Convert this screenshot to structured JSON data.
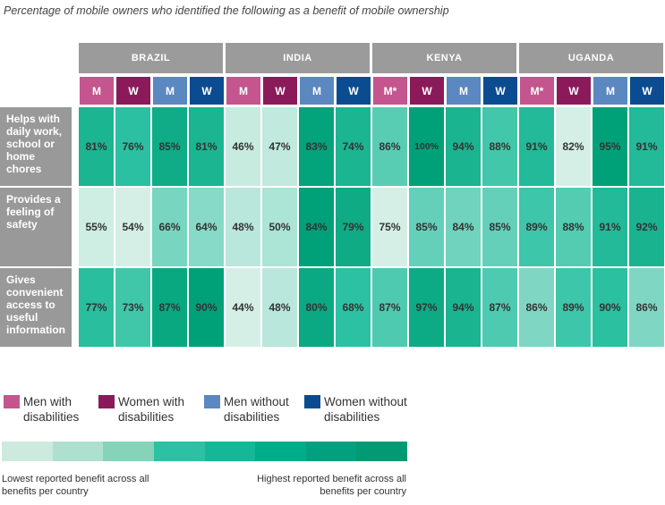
{
  "chart_data": {
    "type": "heatmap",
    "subtitle": "Percentage of mobile owners who identified the following as a benefit of mobile ownership",
    "countries": [
      {
        "name": "BRAZIL",
        "groups": [
          "M",
          "W",
          "M",
          "W"
        ]
      },
      {
        "name": "INDIA",
        "groups": [
          "M",
          "W",
          "M",
          "W"
        ]
      },
      {
        "name": "KENYA",
        "groups": [
          "M*",
          "W",
          "M",
          "W"
        ]
      },
      {
        "name": "UGANDA",
        "groups": [
          "M*",
          "W",
          "M",
          "W"
        ]
      }
    ],
    "group_colors": [
      "#c4558e",
      "#8b1a5b",
      "#5b88c0",
      "#0b4c91"
    ],
    "rows": [
      {
        "label": "Helps with daily work, school or home chores",
        "values": [
          81,
          76,
          85,
          81,
          46,
          47,
          83,
          74,
          86,
          100,
          94,
          88,
          91,
          82,
          95,
          91
        ]
      },
      {
        "label": "Provides a feeling of safety",
        "values": [
          55,
          54,
          66,
          64,
          48,
          50,
          84,
          79,
          75,
          85,
          84,
          85,
          89,
          88,
          91,
          92
        ]
      },
      {
        "label": "Gives convenient access to useful information",
        "values": [
          77,
          73,
          87,
          90,
          44,
          48,
          80,
          68,
          87,
          97,
          94,
          87,
          86,
          89,
          90,
          86
        ]
      }
    ],
    "legend": [
      {
        "label": "Men with disabilities",
        "color": "#c4558e"
      },
      {
        "label": "Women with disabilities",
        "color": "#8b1a5b"
      },
      {
        "label": "Men without disabilities",
        "color": "#5b88c0"
      },
      {
        "label": "Women without disabilities",
        "color": "#0b4c91"
      }
    ],
    "scale_colors": [
      "#cdeadf",
      "#aee0cf",
      "#86d3ba",
      "#2cc1a2",
      "#14b898",
      "#00ad8b",
      "#01a07e",
      "#019a73"
    ],
    "scale_low_label": "Lowest reported benefit across all benefits per country",
    "scale_high_label": "Highest reported benefit across all benefits per country"
  }
}
